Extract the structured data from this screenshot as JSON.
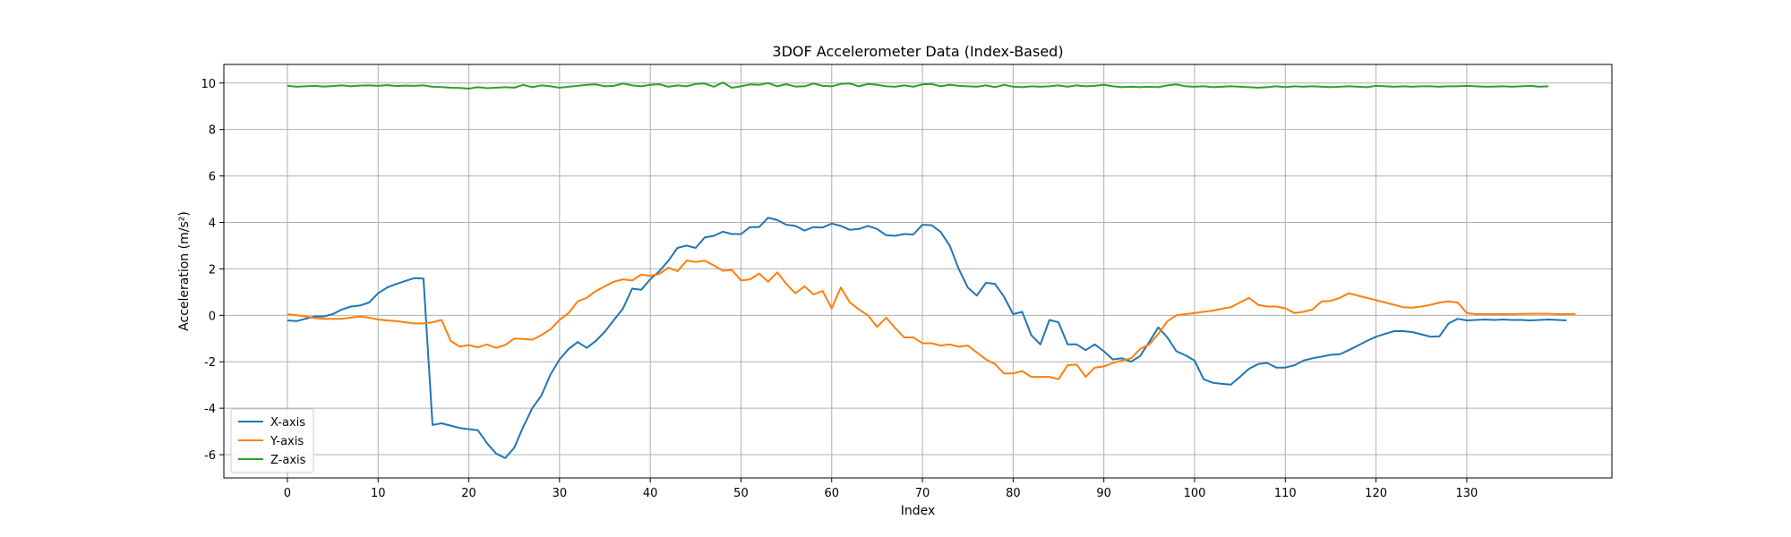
{
  "chart_data": {
    "type": "line",
    "title": "3DOF Accelerometer Data (Index-Based)",
    "xlabel": "Index",
    "ylabel": "Acceleration (m/s²)",
    "xlim": [
      -7,
      146
    ],
    "ylim": [
      -7,
      10.8
    ],
    "xticks": [
      0,
      10,
      20,
      30,
      40,
      50,
      60,
      70,
      80,
      90,
      100,
      110,
      120,
      130
    ],
    "yticks": [
      -6,
      -4,
      -2,
      0,
      2,
      4,
      6,
      8,
      10
    ],
    "grid": true,
    "legend_position": "lower-left",
    "series": [
      {
        "name": "X-axis",
        "color": "#1f77b4",
        "values": [
          -0.22,
          -0.25,
          -0.15,
          -0.05,
          -0.05,
          0.05,
          0.25,
          0.38,
          0.42,
          0.55,
          0.95,
          1.2,
          1.35,
          1.48,
          1.6,
          1.58,
          -4.72,
          -4.65,
          -4.75,
          -4.85,
          -4.9,
          -4.95,
          -5.5,
          -5.95,
          -6.15,
          -5.7,
          -4.8,
          -4.0,
          -3.45,
          -2.55,
          -1.9,
          -1.45,
          -1.15,
          -1.4,
          -1.1,
          -0.7,
          -0.2,
          0.3,
          1.15,
          1.1,
          1.55,
          1.9,
          2.35,
          2.9,
          3.0,
          2.9,
          3.35,
          3.42,
          3.6,
          3.5,
          3.5,
          3.8,
          3.8,
          4.2,
          4.1,
          3.9,
          3.85,
          3.65,
          3.8,
          3.78,
          3.95,
          3.85,
          3.68,
          3.72,
          3.85,
          3.72,
          3.45,
          3.42,
          3.5,
          3.48,
          3.9,
          3.88,
          3.6,
          3.0,
          2.0,
          1.2,
          0.85,
          1.4,
          1.35,
          0.8,
          0.05,
          0.15,
          -0.85,
          -1.25,
          -0.2,
          -0.3,
          -1.25,
          -1.25,
          -1.5,
          -1.25,
          -1.55,
          -1.9,
          -1.85,
          -2.0,
          -1.75,
          -1.15,
          -0.52,
          -0.95,
          -1.55,
          -1.72,
          -1.95,
          -2.75,
          -2.9,
          -2.95,
          -2.98,
          -2.65,
          -2.3,
          -2.1,
          -2.05,
          -2.25,
          -2.25,
          -2.15,
          -1.95,
          -1.85,
          -1.78,
          -1.7,
          -1.68,
          -1.5,
          -1.3,
          -1.1,
          -0.92,
          -0.8,
          -0.68,
          -0.68,
          -0.72,
          -0.82,
          -0.92,
          -0.9,
          -0.35,
          -0.15,
          -0.22,
          -0.2,
          -0.18,
          -0.2,
          -0.18,
          -0.2,
          -0.2,
          -0.22,
          -0.2,
          -0.18,
          -0.2,
          -0.22
        ]
      },
      {
        "name": "Y-axis",
        "color": "#ff7f0e",
        "values": [
          0.05,
          0.0,
          -0.05,
          -0.12,
          -0.15,
          -0.15,
          -0.15,
          -0.1,
          -0.05,
          -0.1,
          -0.18,
          -0.22,
          -0.25,
          -0.3,
          -0.35,
          -0.35,
          -0.3,
          -0.2,
          -1.1,
          -1.35,
          -1.28,
          -1.38,
          -1.25,
          -1.4,
          -1.28,
          -1.0,
          -1.02,
          -1.05,
          -0.85,
          -0.6,
          -0.2,
          0.1,
          0.6,
          0.75,
          1.05,
          1.25,
          1.45,
          1.55,
          1.5,
          1.75,
          1.7,
          1.78,
          2.05,
          1.9,
          2.35,
          2.3,
          2.35,
          2.15,
          1.92,
          1.95,
          1.5,
          1.55,
          1.8,
          1.45,
          1.85,
          1.35,
          0.95,
          1.25,
          0.9,
          1.05,
          0.3,
          1.2,
          0.55,
          0.25,
          0.0,
          -0.5,
          -0.1,
          -0.55,
          -0.95,
          -0.95,
          -1.2,
          -1.2,
          -1.3,
          -1.25,
          -1.35,
          -1.3,
          -1.6,
          -1.9,
          -2.1,
          -2.5,
          -2.5,
          -2.4,
          -2.65,
          -2.65,
          -2.65,
          -2.75,
          -2.15,
          -2.12,
          -2.65,
          -2.25,
          -2.2,
          -2.05,
          -1.95,
          -1.85,
          -1.45,
          -1.25,
          -0.8,
          -0.25,
          0.0,
          0.05,
          0.1,
          0.15,
          0.2,
          0.28,
          0.35,
          0.55,
          0.75,
          0.45,
          0.38,
          0.38,
          0.3,
          0.1,
          0.15,
          0.25,
          0.6,
          0.62,
          0.75,
          0.95,
          0.85,
          0.75,
          0.65,
          0.55,
          0.45,
          0.35,
          0.33,
          0.38,
          0.45,
          0.55,
          0.6,
          0.55,
          0.1,
          0.05,
          0.05,
          0.05,
          0.05,
          0.05,
          0.06,
          0.07,
          0.07,
          0.07,
          0.05,
          0.05,
          0.06
        ]
      },
      {
        "name": "Z-axis",
        "color": "#2ca02c",
        "values": [
          9.88,
          9.84,
          9.86,
          9.88,
          9.85,
          9.87,
          9.9,
          9.86,
          9.89,
          9.9,
          9.88,
          9.91,
          9.87,
          9.89,
          9.88,
          9.9,
          9.84,
          9.83,
          9.8,
          9.79,
          9.76,
          9.82,
          9.78,
          9.8,
          9.82,
          9.8,
          9.92,
          9.82,
          9.9,
          9.86,
          9.8,
          9.84,
          9.88,
          9.92,
          9.94,
          9.86,
          9.88,
          9.98,
          9.9,
          9.86,
          9.92,
          9.95,
          9.84,
          9.9,
          9.86,
          9.96,
          9.98,
          9.84,
          10.02,
          9.8,
          9.86,
          9.94,
          9.92,
          10.0,
          9.86,
          9.95,
          9.85,
          9.86,
          9.98,
          9.88,
          9.86,
          9.96,
          9.98,
          9.86,
          9.96,
          9.92,
          9.86,
          9.84,
          9.9,
          9.84,
          9.94,
          9.96,
          9.86,
          9.92,
          9.88,
          9.86,
          9.84,
          9.9,
          9.82,
          9.92,
          9.84,
          9.82,
          9.86,
          9.84,
          9.86,
          9.9,
          9.84,
          9.9,
          9.86,
          9.88,
          9.92,
          9.86,
          9.82,
          9.84,
          9.82,
          9.84,
          9.82,
          9.9,
          9.94,
          9.86,
          9.84,
          9.86,
          9.82,
          9.84,
          9.86,
          9.84,
          9.82,
          9.8,
          9.82,
          9.86,
          9.82,
          9.86,
          9.84,
          9.86,
          9.84,
          9.82,
          9.84,
          9.86,
          9.84,
          9.82,
          9.88,
          9.86,
          9.84,
          9.86,
          9.84,
          9.86,
          9.86,
          9.84,
          9.86,
          9.86,
          9.88,
          9.86,
          9.84,
          9.85,
          9.86,
          9.84,
          9.86,
          9.88,
          9.84,
          9.86
        ]
      }
    ]
  }
}
